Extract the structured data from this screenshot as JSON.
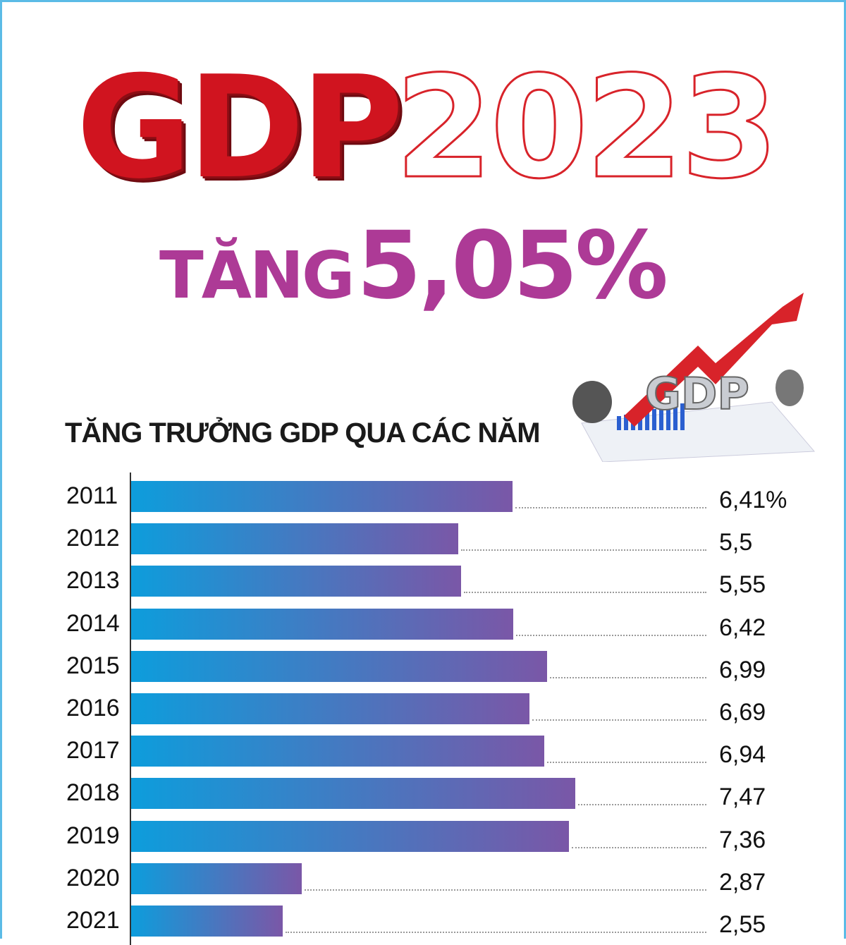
{
  "header": {
    "title_gdp": "GDP",
    "title_year": "2023",
    "growth_prefix": "TĂNG",
    "growth_value": "5,05%"
  },
  "illustration": {
    "label": "GDP"
  },
  "chart_data": {
    "type": "bar",
    "orientation": "horizontal",
    "title": "TĂNG TRƯỞNG GDP QUA CÁC NĂM",
    "categories": [
      "2011",
      "2012",
      "2013",
      "2014",
      "2015",
      "2016",
      "2017",
      "2018",
      "2019",
      "2020",
      "2021"
    ],
    "values": [
      6.41,
      5.5,
      5.55,
      6.42,
      6.99,
      6.69,
      6.94,
      7.47,
      7.36,
      2.87,
      2.55
    ],
    "value_labels": [
      "6,41%",
      "5,5",
      "5,55",
      "6,42",
      "6,99",
      "6,69",
      "6,94",
      "7,47",
      "7,36",
      "2,87",
      "2,55"
    ],
    "unit": "%",
    "colors": {
      "bar_start": "#0d9ddc",
      "bar_end": "#7a57a7"
    }
  }
}
